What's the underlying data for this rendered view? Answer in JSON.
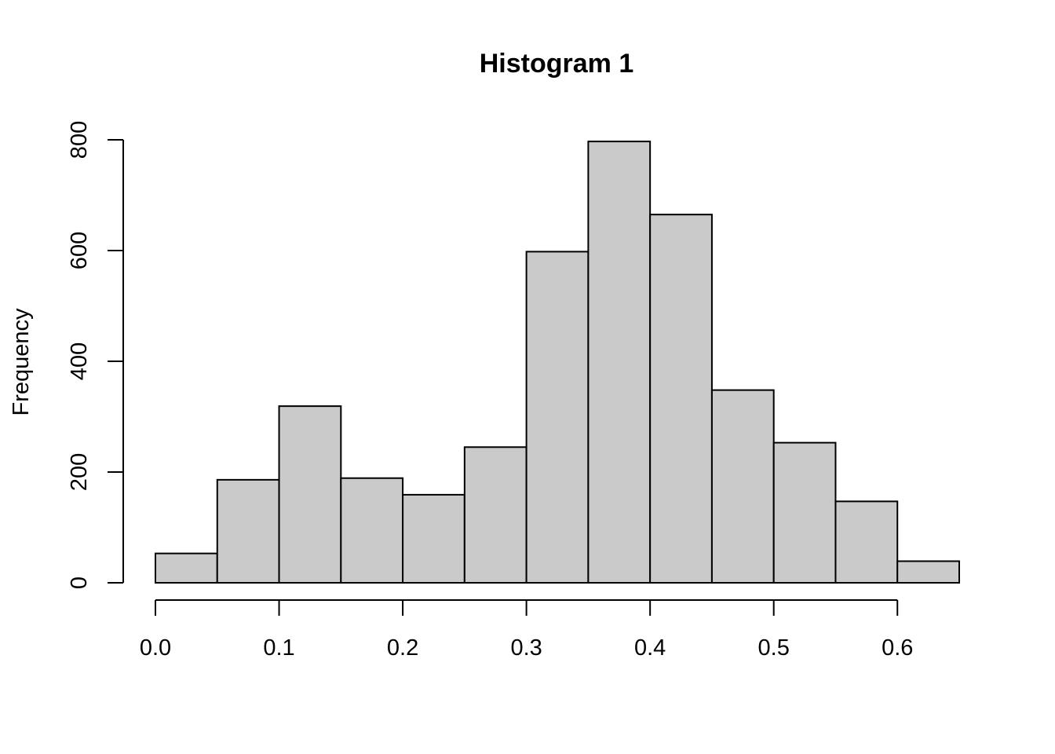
{
  "chart_data": {
    "type": "bar",
    "title": "Histogram 1",
    "xlabel": "",
    "ylabel": "Frequency",
    "bin_edges": [
      0.0,
      0.05,
      0.1,
      0.15,
      0.2,
      0.25,
      0.3,
      0.35,
      0.4,
      0.45,
      0.5,
      0.55,
      0.6,
      0.65
    ],
    "values": [
      53,
      186,
      319,
      189,
      159,
      245,
      598,
      797,
      665,
      348,
      253,
      147,
      39
    ],
    "x_ticks": [
      0.0,
      0.1,
      0.2,
      0.3,
      0.4,
      0.5,
      0.6
    ],
    "x_tick_labels": [
      "0.0",
      "0.1",
      "0.2",
      "0.3",
      "0.4",
      "0.5",
      "0.6"
    ],
    "y_ticks": [
      0,
      200,
      400,
      600,
      800
    ],
    "y_tick_labels": [
      "0",
      "200",
      "400",
      "600",
      "800"
    ],
    "xlim": [
      0.0,
      0.65
    ],
    "ylim": [
      0,
      800
    ],
    "grid": false,
    "bar_color": "#cacaca",
    "edge_color": "#000000"
  }
}
